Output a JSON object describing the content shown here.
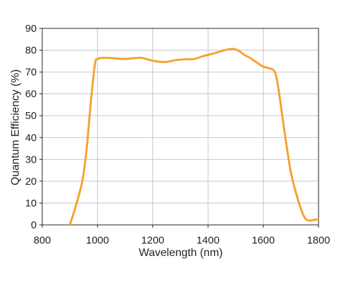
{
  "chart_data": {
    "type": "line",
    "xlabel": "Wavelength (nm)",
    "ylabel": "Quantum Efficiency (%)",
    "xlim": [
      800,
      1800
    ],
    "ylim": [
      0,
      90
    ],
    "xticks": [
      800,
      1000,
      1200,
      1400,
      1600,
      1800
    ],
    "yticks": [
      0,
      10,
      20,
      30,
      40,
      50,
      60,
      70,
      80,
      90
    ],
    "grid": true,
    "line_color": "#f7a12f",
    "series": [
      {
        "x": [
          900,
          920,
          945,
          960,
          975,
          990,
          1000,
          1030,
          1060,
          1100,
          1130,
          1160,
          1190,
          1220,
          1250,
          1280,
          1310,
          1350,
          1380,
          1420,
          1460,
          1490,
          1510,
          1530,
          1550,
          1575,
          1600,
          1620,
          1640,
          1650,
          1660,
          1680,
          1700,
          1720,
          1740,
          1755,
          1770,
          1785,
          1800
        ],
        "y": [
          0,
          8,
          20,
          34,
          55,
          73,
          76,
          76.5,
          76.3,
          76,
          76.3,
          76.5,
          75.5,
          74.8,
          74.6,
          75.4,
          75.8,
          76,
          77.2,
          78.5,
          80,
          80.6,
          79.8,
          78,
          76.6,
          74.5,
          72.5,
          71.8,
          70.5,
          66,
          58,
          40,
          24,
          14,
          6,
          2.5,
          2,
          2.3,
          2.6
        ]
      }
    ]
  }
}
